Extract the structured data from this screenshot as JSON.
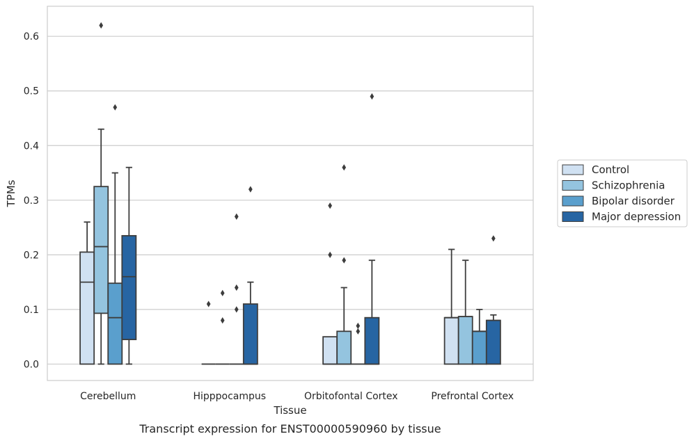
{
  "chart_data": {
    "type": "box",
    "xlabel": "Tissue",
    "ylabel": "TPMs",
    "caption": "Transcript expression for ENST00000590960 by tissue",
    "ylim": [
      -0.03,
      0.655
    ],
    "yticks": [
      "0.0",
      "0.1",
      "0.2",
      "0.3",
      "0.4",
      "0.5",
      "0.6"
    ],
    "grid": "horizontal",
    "legend_position": "right",
    "categories": [
      "Cerebellum",
      "Hipppocampus",
      "Orbitofontal Cortex",
      "Prefrontal Cortex"
    ],
    "series": [
      {
        "name": "Control",
        "color": "#d0e1f2",
        "boxes": [
          {
            "min": 0.0,
            "q1": 0.0,
            "median": 0.15,
            "q3": 0.205,
            "max": 0.26,
            "outliers": []
          },
          {
            "min": 0.0,
            "q1": 0.0,
            "median": 0.0,
            "q3": 0.0,
            "max": 0.0,
            "outliers": [
              0.11
            ]
          },
          {
            "min": 0.0,
            "q1": 0.0,
            "median": 0.0,
            "q3": 0.05,
            "max": 0.05,
            "outliers": [
              0.29,
              0.2
            ]
          },
          {
            "min": 0.0,
            "q1": 0.0,
            "median": 0.085,
            "q3": 0.085,
            "max": 0.21,
            "outliers": []
          }
        ]
      },
      {
        "name": "Schizophrenia",
        "color": "#94c4df",
        "boxes": [
          {
            "min": 0.0,
            "q1": 0.093,
            "median": 0.215,
            "q3": 0.325,
            "max": 0.43,
            "outliers": [
              0.62
            ]
          },
          {
            "min": 0.0,
            "q1": 0.0,
            "median": 0.0,
            "q3": 0.0,
            "max": 0.0,
            "outliers": [
              0.13,
              0.08
            ]
          },
          {
            "min": 0.0,
            "q1": 0.0,
            "median": 0.0,
            "q3": 0.06,
            "max": 0.14,
            "outliers": [
              0.36,
              0.19
            ]
          },
          {
            "min": 0.0,
            "q1": 0.0,
            "median": 0.087,
            "q3": 0.087,
            "max": 0.19,
            "outliers": []
          }
        ]
      },
      {
        "name": "Bipolar disorder",
        "color": "#5a9fcd",
        "boxes": [
          {
            "min": 0.0,
            "q1": 0.0,
            "median": 0.085,
            "q3": 0.148,
            "max": 0.35,
            "outliers": [
              0.47
            ]
          },
          {
            "min": 0.0,
            "q1": 0.0,
            "median": 0.0,
            "q3": 0.0,
            "max": 0.0,
            "outliers": [
              0.27,
              0.14,
              0.1
            ]
          },
          {
            "min": 0.0,
            "q1": 0.0,
            "median": 0.0,
            "q3": 0.0,
            "max": 0.0,
            "outliers": [
              0.07,
              0.06
            ]
          },
          {
            "min": 0.0,
            "q1": 0.0,
            "median": 0.06,
            "q3": 0.06,
            "max": 0.1,
            "outliers": []
          }
        ]
      },
      {
        "name": "Major depression",
        "color": "#2765a3",
        "boxes": [
          {
            "min": 0.0,
            "q1": 0.045,
            "median": 0.16,
            "q3": 0.235,
            "max": 0.36,
            "outliers": []
          },
          {
            "min": 0.0,
            "q1": 0.0,
            "median": 0.0,
            "q3": 0.11,
            "max": 0.15,
            "outliers": [
              0.32
            ]
          },
          {
            "min": 0.0,
            "q1": 0.0,
            "median": 0.0,
            "q3": 0.085,
            "max": 0.19,
            "outliers": [
              0.49
            ]
          },
          {
            "min": 0.0,
            "q1": 0.0,
            "median": 0.08,
            "q3": 0.08,
            "max": 0.09,
            "outliers": [
              0.23
            ]
          }
        ]
      }
    ]
  }
}
